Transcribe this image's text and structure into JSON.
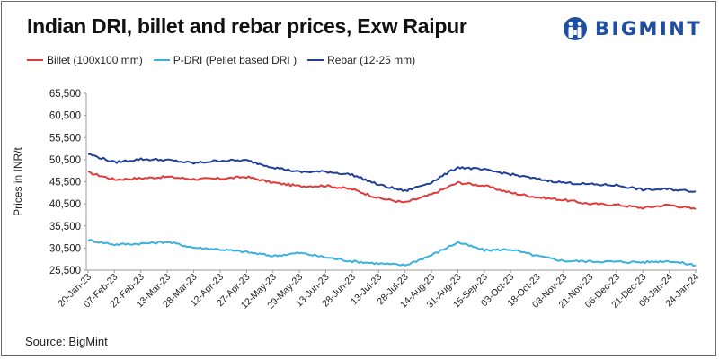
{
  "chart_data": {
    "type": "line",
    "title": "Indian DRI, billet and rebar prices, Exw Raipur",
    "ylabel": "Prices in INR/t",
    "xlabel": "",
    "ylim": [
      25500,
      65500
    ],
    "yticks": [
      "65,500",
      "60,500",
      "55,500",
      "50,500",
      "45,500",
      "40,500",
      "35,500",
      "30,500",
      "25,500"
    ],
    "ytick_values": [
      65500,
      60500,
      55500,
      50500,
      45500,
      40500,
      35500,
      30500,
      25500
    ],
    "categories": [
      "20-Jan-23",
      "07-Feb-23",
      "22-Feb-23",
      "13-Mar-23",
      "28-Mar-23",
      "12-Apr-23",
      "27-Apr-23",
      "12-May-23",
      "29-May-23",
      "13-Jun-23",
      "28-Jun-23",
      "13-Jul-23",
      "28-Jul-23",
      "14-Aug-23",
      "31-Aug-23",
      "15-Sep-23",
      "03-Oct-23",
      "18-Oct-23",
      "03-Nov-23",
      "21-Nov-23",
      "06-Dec-23",
      "21-Dec-23",
      "08-Jan-24",
      "24-Jan-24"
    ],
    "series": [
      {
        "name": "Billet (100x100 mm)",
        "color": "#e03a3a",
        "values": [
          47600,
          46000,
          46300,
          46600,
          46100,
          46200,
          46600,
          45300,
          44500,
          44600,
          43800,
          41800,
          40800,
          42600,
          45300,
          44600,
          43000,
          42000,
          41400,
          40500,
          40300,
          39600,
          40300,
          39300
        ]
      },
      {
        "name": "P-DRI (Pellet based DRI )",
        "color": "#3bb0e0",
        "values": [
          32300,
          31300,
          31500,
          31900,
          30600,
          30200,
          29600,
          28700,
          29400,
          28400,
          27500,
          27000,
          26600,
          28900,
          31800,
          30000,
          30200,
          28700,
          27600,
          27500,
          27400,
          27300,
          27600,
          26600
        ]
      },
      {
        "name": "Rebar (12-25 mm)",
        "color": "#1f3f99",
        "values": [
          51800,
          49900,
          50600,
          50400,
          49700,
          50300,
          50300,
          48800,
          47700,
          47800,
          47100,
          44800,
          43400,
          45400,
          48800,
          48200,
          47200,
          46100,
          45300,
          44900,
          44700,
          43700,
          43800,
          43300
        ]
      }
    ]
  },
  "source": "Source: BigMint",
  "logo": {
    "text": "BIGMINT",
    "color": "#1e4fa3"
  }
}
